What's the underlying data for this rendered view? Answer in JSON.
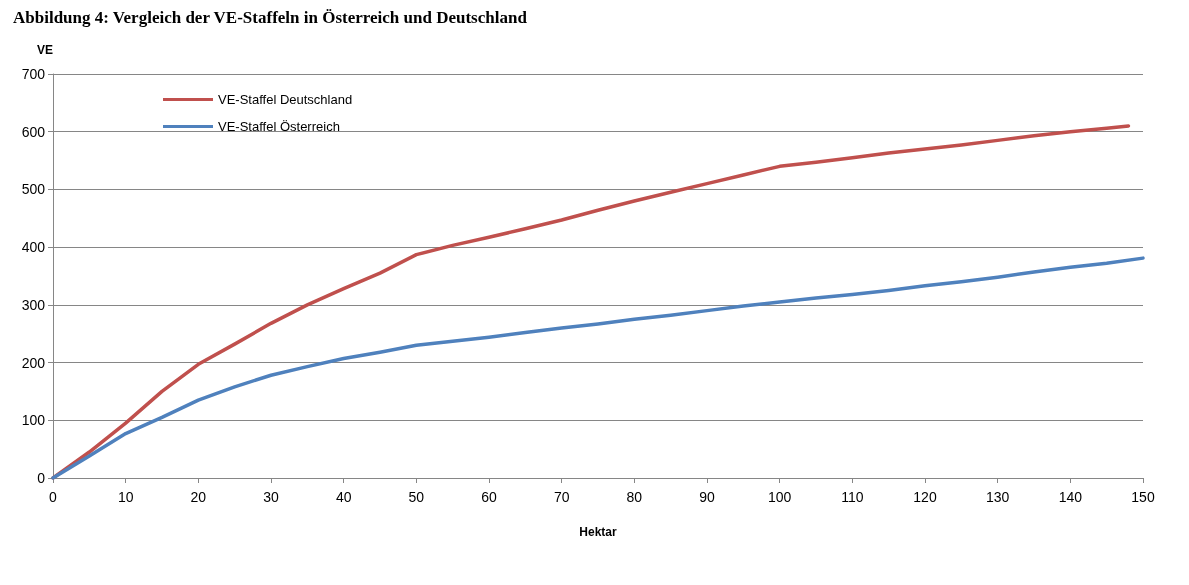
{
  "chart_data": {
    "type": "line",
    "title": "Abbildung 4: Vergleich der VE-Staffeln in Österreich und Deutschland",
    "xlabel": "Hektar",
    "ylabel": "VE",
    "xlim": [
      0,
      150
    ],
    "xticks": [
      0,
      10,
      20,
      30,
      40,
      50,
      60,
      70,
      80,
      90,
      100,
      110,
      120,
      130,
      140,
      150
    ],
    "ylim": [
      0,
      700
    ],
    "yticks": [
      0,
      100,
      200,
      300,
      400,
      500,
      600,
      700
    ],
    "grid": "y",
    "legend": "top left",
    "marker": "none",
    "line_style": "solid",
    "series": [
      {
        "name": "VE-Staffel Deutschland",
        "color": "#c0504d",
        "x": [
          0,
          5,
          10,
          15,
          20,
          25,
          30,
          35,
          40,
          45,
          50,
          55,
          60,
          65,
          70,
          75,
          80,
          85,
          90,
          95,
          100,
          105,
          110,
          115,
          120,
          125,
          130,
          135,
          140,
          145,
          148
        ],
        "values": [
          0,
          45,
          95,
          150,
          197,
          232,
          268,
          300,
          328,
          355,
          387,
          403,
          417,
          432,
          447,
          464,
          480,
          495,
          510,
          525,
          540,
          547,
          555,
          563,
          570,
          577,
          585,
          593,
          600,
          606,
          610
        ]
      },
      {
        "name": "VE-Staffel Österreich",
        "color": "#4f81bd",
        "x": [
          0,
          5,
          10,
          15,
          20,
          25,
          30,
          35,
          40,
          45,
          50,
          55,
          60,
          65,
          70,
          75,
          80,
          85,
          90,
          95,
          100,
          105,
          110,
          115,
          120,
          125,
          130,
          135,
          140,
          145,
          150
        ],
        "values": [
          0,
          38,
          77,
          105,
          135,
          158,
          178,
          193,
          207,
          218,
          230,
          237,
          244,
          252,
          260,
          267,
          275,
          282,
          290,
          298,
          305,
          312,
          318,
          325,
          333,
          340,
          348,
          357,
          365,
          372,
          381
        ]
      }
    ]
  }
}
